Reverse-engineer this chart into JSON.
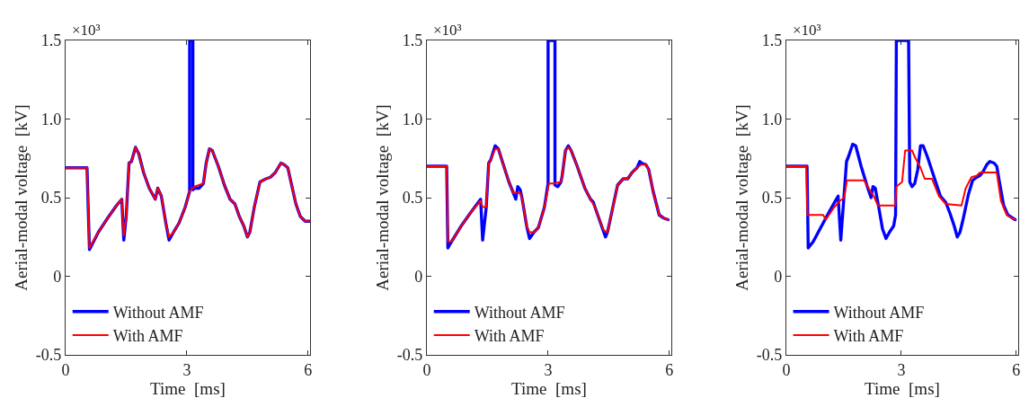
{
  "chart_data": [
    {
      "type": "line",
      "xlabel": "Time  [ms]",
      "ylabel": "Aerial-modal voltage  [kV]",
      "annotations": [
        "×10³"
      ],
      "xlim": [
        0,
        6.05
      ],
      "xticks": [
        0,
        3,
        6
      ],
      "ylim": [
        -0.5,
        1.5
      ],
      "yticks": [
        {
          "value": -0.5,
          "label": "-0.5"
        },
        {
          "value": 0,
          "label": "0"
        },
        {
          "value": 0.5,
          "label": "0.5"
        },
        {
          "value": 1,
          "label": "1.0"
        },
        {
          "value": 1.5,
          "label": "1.5"
        }
      ],
      "grid": false,
      "legend": "bottom left",
      "line_style": "solid",
      "series": [
        {
          "name": "Without AMF",
          "color": "#0000ff",
          "x": [
            0,
            0.53,
            0.59,
            0.81,
            1.04,
            1.26,
            1.39,
            1.44,
            1.5,
            1.57,
            1.63,
            1.73,
            1.81,
            1.93,
            2.07,
            2.22,
            2.28,
            2.37,
            2.48,
            2.56,
            2.67,
            2.81,
            2.96,
            3.07,
            3.07,
            3.15,
            3.15,
            3.19,
            3.3,
            3.41,
            3.48,
            3.56,
            3.63,
            3.78,
            3.93,
            4.07,
            4.19,
            4.3,
            4.41,
            4.5,
            4.56,
            4.67,
            4.81,
            4.96,
            5.07,
            5.19,
            5.26,
            5.33,
            5.41,
            5.5,
            5.56,
            5.7,
            5.81,
            5.93,
            6.04
          ],
          "values": [
            0.69,
            0.69,
            0.17,
            0.28,
            0.37,
            0.45,
            0.49,
            0.23,
            0.38,
            0.72,
            0.73,
            0.82,
            0.78,
            0.66,
            0.56,
            0.49,
            0.56,
            0.51,
            0.34,
            0.23,
            0.28,
            0.34,
            0.44,
            0.54,
            1.5,
            1.5,
            0.55,
            0.56,
            0.56,
            0.59,
            0.72,
            0.81,
            0.8,
            0.7,
            0.58,
            0.49,
            0.46,
            0.38,
            0.32,
            0.25,
            0.28,
            0.44,
            0.6,
            0.62,
            0.63,
            0.66,
            0.69,
            0.72,
            0.71,
            0.69,
            0.62,
            0.46,
            0.38,
            0.35,
            0.35
          ]
        },
        {
          "name": "With AMF",
          "color": "#ff0000",
          "x": [
            0,
            0.53,
            0.59,
            0.81,
            1.04,
            1.26,
            1.39,
            1.44,
            1.5,
            1.57,
            1.63,
            1.73,
            1.81,
            1.93,
            2.07,
            2.22,
            2.28,
            2.37,
            2.48,
            2.56,
            2.67,
            2.81,
            2.96,
            3.07,
            3.19,
            3.3,
            3.41,
            3.48,
            3.56,
            3.63,
            3.78,
            3.93,
            4.07,
            4.19,
            4.3,
            4.41,
            4.5,
            4.56,
            4.67,
            4.81,
            4.96,
            5.07,
            5.19,
            5.26,
            5.33,
            5.41,
            5.5,
            5.56,
            5.7,
            5.81,
            5.93,
            6.04
          ],
          "values": [
            0.69,
            0.69,
            0.18,
            0.28,
            0.37,
            0.45,
            0.49,
            0.26,
            0.38,
            0.72,
            0.73,
            0.82,
            0.78,
            0.66,
            0.56,
            0.49,
            0.56,
            0.51,
            0.34,
            0.25,
            0.28,
            0.34,
            0.44,
            0.54,
            0.57,
            0.58,
            0.59,
            0.72,
            0.81,
            0.8,
            0.7,
            0.58,
            0.49,
            0.46,
            0.38,
            0.32,
            0.25,
            0.28,
            0.44,
            0.6,
            0.62,
            0.63,
            0.66,
            0.69,
            0.72,
            0.71,
            0.69,
            0.62,
            0.46,
            0.38,
            0.35,
            0.35
          ]
        }
      ]
    },
    {
      "type": "line",
      "xlabel": "Time  [ms]",
      "ylabel": "Aerial-modal voltage  [kV]",
      "annotations": [
        "×10³"
      ],
      "xlim": [
        0,
        6.05
      ],
      "xticks": [
        0,
        3,
        6
      ],
      "ylim": [
        -0.5,
        1.5
      ],
      "yticks": [
        {
          "value": -0.5,
          "label": "-0.5"
        },
        {
          "value": 0,
          "label": "0"
        },
        {
          "value": 0.5,
          "label": "0.5"
        },
        {
          "value": 1,
          "label": "1.0"
        },
        {
          "value": 1.5,
          "label": "1.5"
        }
      ],
      "grid": false,
      "legend": "bottom left",
      "line_style": "solid",
      "series": [
        {
          "name": "Without AMF",
          "color": "#0000ff",
          "x": [
            0,
            0.49,
            0.52,
            0.61,
            0.85,
            1.07,
            1.33,
            1.38,
            1.47,
            1.53,
            1.58,
            1.69,
            1.77,
            1.88,
            2.03,
            2.14,
            2.2,
            2.25,
            2.31,
            2.36,
            2.47,
            2.54,
            2.65,
            2.76,
            2.91,
            3.0,
            3.0,
            3.17,
            3.17,
            3.24,
            3.32,
            3.35,
            3.43,
            3.5,
            3.57,
            3.72,
            3.91,
            4.05,
            4.12,
            4.16,
            4.27,
            4.42,
            4.47,
            4.57,
            4.72,
            4.86,
            4.97,
            5.08,
            5.2,
            5.27,
            5.31,
            5.42,
            5.49,
            5.6,
            5.75,
            5.86,
            5.97
          ],
          "values": [
            0.7,
            0.7,
            0.18,
            0.22,
            0.32,
            0.4,
            0.49,
            0.23,
            0.44,
            0.72,
            0.74,
            0.83,
            0.81,
            0.72,
            0.6,
            0.53,
            0.49,
            0.57,
            0.55,
            0.49,
            0.32,
            0.24,
            0.28,
            0.31,
            0.44,
            0.59,
            1.5,
            1.5,
            0.58,
            0.57,
            0.6,
            0.64,
            0.8,
            0.83,
            0.8,
            0.7,
            0.56,
            0.49,
            0.47,
            0.44,
            0.36,
            0.25,
            0.28,
            0.4,
            0.58,
            0.62,
            0.62,
            0.66,
            0.69,
            0.73,
            0.72,
            0.71,
            0.68,
            0.54,
            0.39,
            0.37,
            0.36
          ]
        },
        {
          "name": "With AMF",
          "color": "#ff0000",
          "x": [
            0,
            0.49,
            0.52,
            0.61,
            0.85,
            1.07,
            1.33,
            1.38,
            1.47,
            1.53,
            1.58,
            1.69,
            1.77,
            1.88,
            2.03,
            2.14,
            2.31,
            2.36,
            2.47,
            2.54,
            2.65,
            2.76,
            2.91,
            3.02,
            3.13,
            3.32,
            3.35,
            3.43,
            3.5,
            3.57,
            3.72,
            3.91,
            4.05,
            4.16,
            4.27,
            4.38,
            4.47,
            4.57,
            4.72,
            4.86,
            4.97,
            5.08,
            5.2,
            5.31,
            5.42,
            5.49,
            5.6,
            5.75,
            5.86,
            5.97
          ],
          "values": [
            0.7,
            0.7,
            0.22,
            0.22,
            0.32,
            0.4,
            0.48,
            0.44,
            0.44,
            0.72,
            0.74,
            0.81,
            0.81,
            0.72,
            0.6,
            0.53,
            0.53,
            0.49,
            0.32,
            0.28,
            0.28,
            0.31,
            0.44,
            0.59,
            0.59,
            0.6,
            0.64,
            0.8,
            0.82,
            0.8,
            0.7,
            0.56,
            0.49,
            0.44,
            0.36,
            0.29,
            0.28,
            0.4,
            0.58,
            0.62,
            0.62,
            0.66,
            0.69,
            0.71,
            0.71,
            0.68,
            0.54,
            0.39,
            0.37,
            0.36
          ]
        }
      ]
    },
    {
      "type": "line",
      "xlabel": "Time  [ms]",
      "ylabel": "Aerial-modal voltage  [kV]",
      "annotations": [
        "×10³"
      ],
      "xlim": [
        0,
        6.05
      ],
      "xticks": [
        0,
        3,
        6
      ],
      "ylim": [
        -0.5,
        1.5
      ],
      "yticks": [
        {
          "value": -0.5,
          "label": "-0.5"
        },
        {
          "value": 0,
          "label": "0"
        },
        {
          "value": 0.5,
          "label": "0.5"
        },
        {
          "value": 1,
          "label": "1.0"
        },
        {
          "value": 1.5,
          "label": "1.5"
        }
      ],
      "grid": false,
      "legend": "bottom left",
      "line_style": "solid",
      "series": [
        {
          "name": "Without AMF",
          "color": "#0000ff",
          "x": [
            0,
            0.54,
            0.57,
            0.7,
            0.92,
            1.14,
            1.35,
            1.42,
            1.57,
            1.62,
            1.73,
            1.81,
            1.95,
            2.1,
            2.21,
            2.26,
            2.32,
            2.41,
            2.51,
            2.6,
            2.69,
            2.8,
            2.85,
            2.87,
            3.19,
            3.22,
            3.28,
            3.35,
            3.43,
            3.5,
            3.57,
            3.68,
            3.87,
            4.02,
            4.16,
            4.27,
            4.38,
            4.46,
            4.53,
            4.61,
            4.75,
            4.86,
            4.97,
            5.05,
            5.12,
            5.23,
            5.31,
            5.42,
            5.49,
            5.56,
            5.67,
            5.78,
            5.97
          ],
          "values": [
            0.7,
            0.7,
            0.18,
            0.22,
            0.32,
            0.42,
            0.51,
            0.23,
            0.73,
            0.76,
            0.84,
            0.83,
            0.7,
            0.58,
            0.5,
            0.57,
            0.56,
            0.44,
            0.3,
            0.24,
            0.28,
            0.32,
            0.39,
            1.5,
            1.5,
            0.6,
            0.57,
            0.59,
            0.68,
            0.83,
            0.83,
            0.76,
            0.62,
            0.51,
            0.47,
            0.4,
            0.32,
            0.25,
            0.28,
            0.36,
            0.52,
            0.61,
            0.63,
            0.64,
            0.66,
            0.71,
            0.73,
            0.72,
            0.7,
            0.6,
            0.45,
            0.39,
            0.36
          ]
        },
        {
          "name": "With AMF",
          "color": "#ff0000",
          "x": [
            0,
            0.52,
            0.55,
            0.96,
            1.03,
            1.14,
            1.25,
            1.4,
            1.51,
            1.58,
            2.03,
            2.17,
            2.28,
            2.39,
            2.84,
            2.87,
            3.02,
            3.1,
            3.28,
            3.35,
            3.5,
            3.61,
            3.8,
            3.98,
            4.16,
            4.57,
            4.68,
            4.83,
            4.97,
            5.05,
            5.49,
            5.6,
            5.75,
            5.97
          ],
          "values": [
            0.7,
            0.7,
            0.39,
            0.39,
            0.36,
            0.4,
            0.44,
            0.48,
            0.5,
            0.61,
            0.61,
            0.55,
            0.51,
            0.45,
            0.45,
            0.57,
            0.6,
            0.8,
            0.8,
            0.76,
            0.69,
            0.62,
            0.62,
            0.51,
            0.46,
            0.45,
            0.56,
            0.63,
            0.64,
            0.66,
            0.66,
            0.48,
            0.39,
            0.36
          ]
        }
      ]
    }
  ]
}
